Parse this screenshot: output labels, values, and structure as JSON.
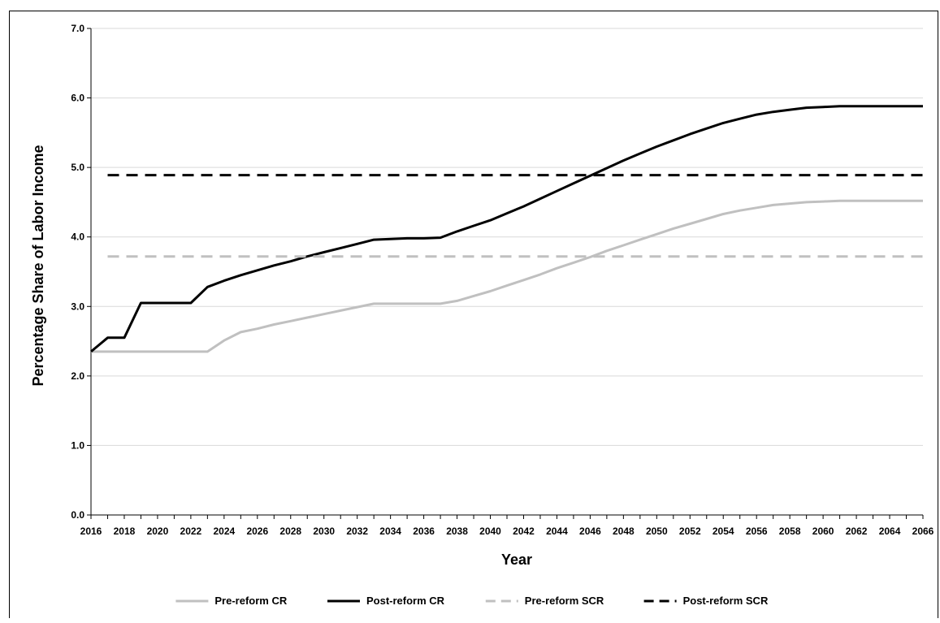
{
  "chart_data": {
    "type": "line",
    "title": "",
    "xlabel": "Year",
    "ylabel": "Percentage Share of Labor Income",
    "xlim": [
      2016,
      2066
    ],
    "ylim": [
      0,
      7
    ],
    "x_ticks": [
      "2016",
      "2018",
      "2020",
      "2022",
      "2024",
      "2026",
      "2028",
      "2030",
      "2032",
      "2034",
      "2036",
      "2038",
      "2040",
      "2042",
      "2044",
      "2046",
      "2048",
      "2050",
      "2052",
      "2054",
      "2056",
      "2058",
      "2060",
      "2062",
      "2064",
      "2066"
    ],
    "y_ticks": [
      "0.0",
      "1.0",
      "2.0",
      "3.0",
      "4.0",
      "5.0",
      "6.0",
      "7.0"
    ],
    "grid": true,
    "legend_position": "bottom",
    "series": [
      {
        "name": "Pre-reform CR",
        "color": "#c0c0c0",
        "dash": "solid",
        "x": [
          2016,
          2017,
          2018,
          2019,
          2020,
          2021,
          2022,
          2023,
          2024,
          2025,
          2026,
          2027,
          2028,
          2029,
          2030,
          2031,
          2032,
          2033,
          2034,
          2035,
          2036,
          2037,
          2038,
          2039,
          2040,
          2041,
          2042,
          2043,
          2044,
          2045,
          2046,
          2047,
          2048,
          2049,
          2050,
          2051,
          2052,
          2053,
          2054,
          2055,
          2056,
          2057,
          2058,
          2059,
          2060,
          2061,
          2062,
          2063,
          2064,
          2065,
          2066
        ],
        "values": [
          2.35,
          2.35,
          2.35,
          2.35,
          2.35,
          2.35,
          2.35,
          2.35,
          2.51,
          2.63,
          2.68,
          2.74,
          2.79,
          2.84,
          2.89,
          2.94,
          2.99,
          3.04,
          3.04,
          3.04,
          3.04,
          3.04,
          3.08,
          3.15,
          3.22,
          3.3,
          3.38,
          3.46,
          3.55,
          3.63,
          3.71,
          3.8,
          3.88,
          3.96,
          4.04,
          4.12,
          4.19,
          4.26,
          4.33,
          4.38,
          4.42,
          4.46,
          4.48,
          4.5,
          4.51,
          4.52,
          4.52,
          4.52,
          4.52,
          4.52,
          4.52
        ]
      },
      {
        "name": "Post-reform CR",
        "color": "#000000",
        "dash": "solid",
        "x": [
          2016,
          2017,
          2018,
          2019,
          2020,
          2021,
          2022,
          2023,
          2024,
          2025,
          2026,
          2027,
          2028,
          2029,
          2030,
          2031,
          2032,
          2033,
          2034,
          2035,
          2036,
          2037,
          2038,
          2039,
          2040,
          2041,
          2042,
          2043,
          2044,
          2045,
          2046,
          2047,
          2048,
          2049,
          2050,
          2051,
          2052,
          2053,
          2054,
          2055,
          2056,
          2057,
          2058,
          2059,
          2060,
          2061,
          2062,
          2063,
          2064,
          2065,
          2066
        ],
        "values": [
          2.35,
          2.55,
          2.55,
          3.05,
          3.05,
          3.05,
          3.05,
          3.28,
          3.37,
          3.45,
          3.52,
          3.59,
          3.65,
          3.72,
          3.78,
          3.84,
          3.9,
          3.96,
          3.97,
          3.98,
          3.98,
          3.99,
          4.08,
          4.16,
          4.24,
          4.34,
          4.44,
          4.55,
          4.66,
          4.77,
          4.88,
          4.99,
          5.1,
          5.2,
          5.3,
          5.39,
          5.48,
          5.56,
          5.64,
          5.7,
          5.76,
          5.8,
          5.83,
          5.86,
          5.87,
          5.88,
          5.88,
          5.88,
          5.88,
          5.88,
          5.88
        ]
      },
      {
        "name": "Pre-reform SCR",
        "color": "#c0c0c0",
        "dash": "dashed",
        "x": [
          2017,
          2066
        ],
        "values": [
          3.72,
          3.72
        ]
      },
      {
        "name": "Post-reform SCR",
        "color": "#000000",
        "dash": "dashed",
        "x": [
          2017,
          2066
        ],
        "values": [
          4.89,
          4.89
        ]
      }
    ]
  }
}
